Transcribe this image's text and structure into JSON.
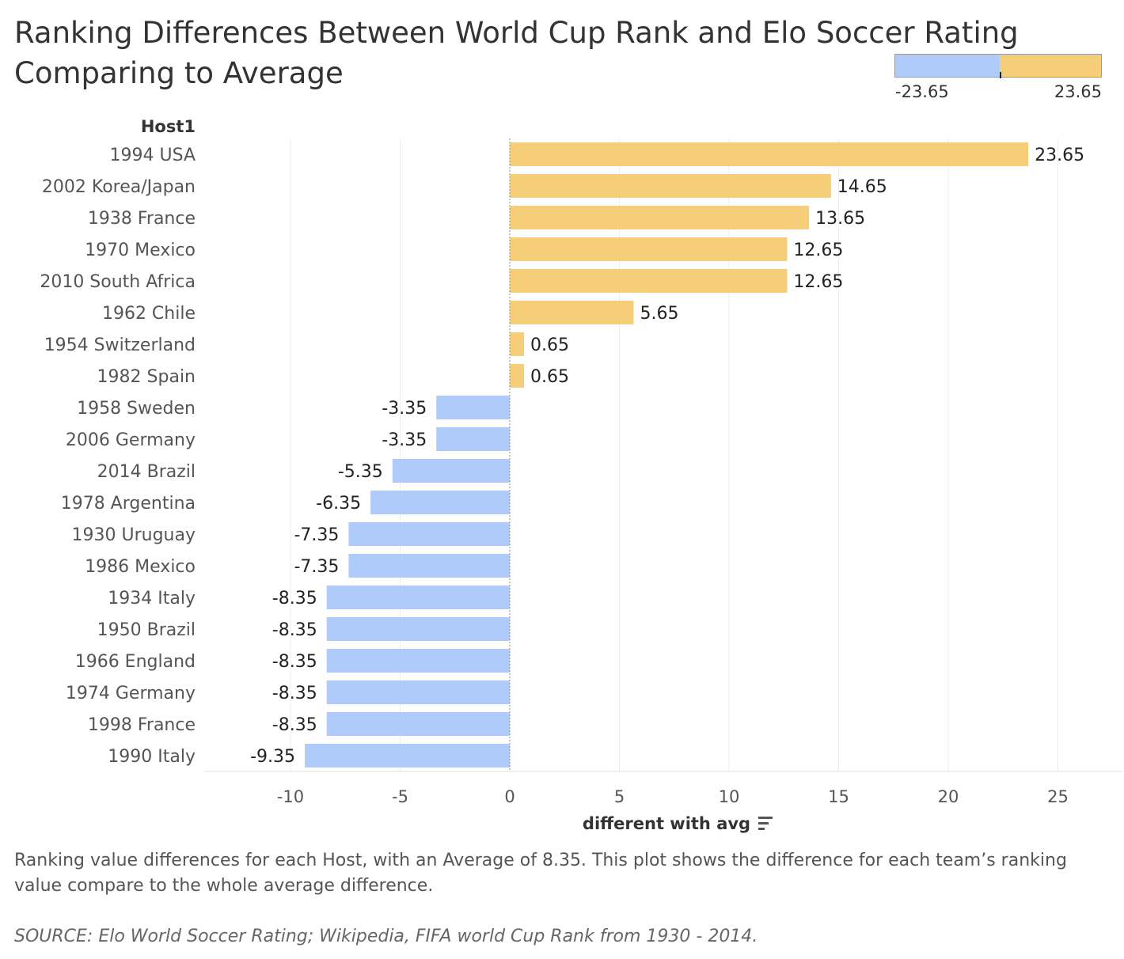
{
  "title_line1": "Ranking Differences Between World Cup Rank and Elo Soccer Rating",
  "title_line2": "Comparing to Average",
  "legend": {
    "min_label": "-23.65",
    "max_label": "23.65",
    "neg_color": "#aecbfa",
    "pos_color": "#f6cd78"
  },
  "caption": "Ranking value differences for each Host, with an Average of 8.35.  This plot shows the difference for each team’s ranking value compare to the whole average difference.",
  "source": "SOURCE: Elo World Soccer Rating; Wikipedia, FIFA world Cup Rank from 1930 - 2014.",
  "chart_data": {
    "type": "bar",
    "orientation": "horizontal",
    "ylabel": "Host1",
    "xlabel": "different with avg",
    "xlim": [
      -13.5,
      27.5
    ],
    "xticks": [
      -10,
      -5,
      0,
      5,
      10,
      15,
      20,
      25
    ],
    "xtick_labels": [
      "-10",
      "-5",
      "0",
      "5",
      "10",
      "15",
      "20",
      "25"
    ],
    "grid": true,
    "categories": [
      "1994 USA",
      "2002 Korea/Japan",
      "1938 France",
      "1970 Mexico",
      "2010 South Africa",
      "1962 Chile",
      "1954 Switzerland",
      "1982 Spain",
      "1958 Sweden",
      "2006 Germany",
      "2014 Brazil",
      "1978 Argentina",
      "1930 Uruguay",
      "1986 Mexico",
      "1934 Italy",
      "1950 Brazil",
      "1966 England",
      "1974 Germany",
      "1998 France",
      "1990 Italy"
    ],
    "values": [
      23.65,
      14.65,
      13.65,
      12.65,
      12.65,
      5.65,
      0.65,
      0.65,
      -3.35,
      -3.35,
      -5.35,
      -6.35,
      -7.35,
      -7.35,
      -8.35,
      -8.35,
      -8.35,
      -8.35,
      -8.35,
      -9.35
    ],
    "value_labels": [
      "23.65",
      "14.65",
      "13.65",
      "12.65",
      "12.65",
      "5.65",
      "0.65",
      "0.65",
      "-3.35",
      "-3.35",
      "-5.35",
      "-6.35",
      "-7.35",
      "-7.35",
      "-8.35",
      "-8.35",
      "-8.35",
      "-8.35",
      "-8.35",
      "-9.35"
    ],
    "colors": {
      "positive": "#f6cd78",
      "negative": "#aecbfa"
    }
  }
}
